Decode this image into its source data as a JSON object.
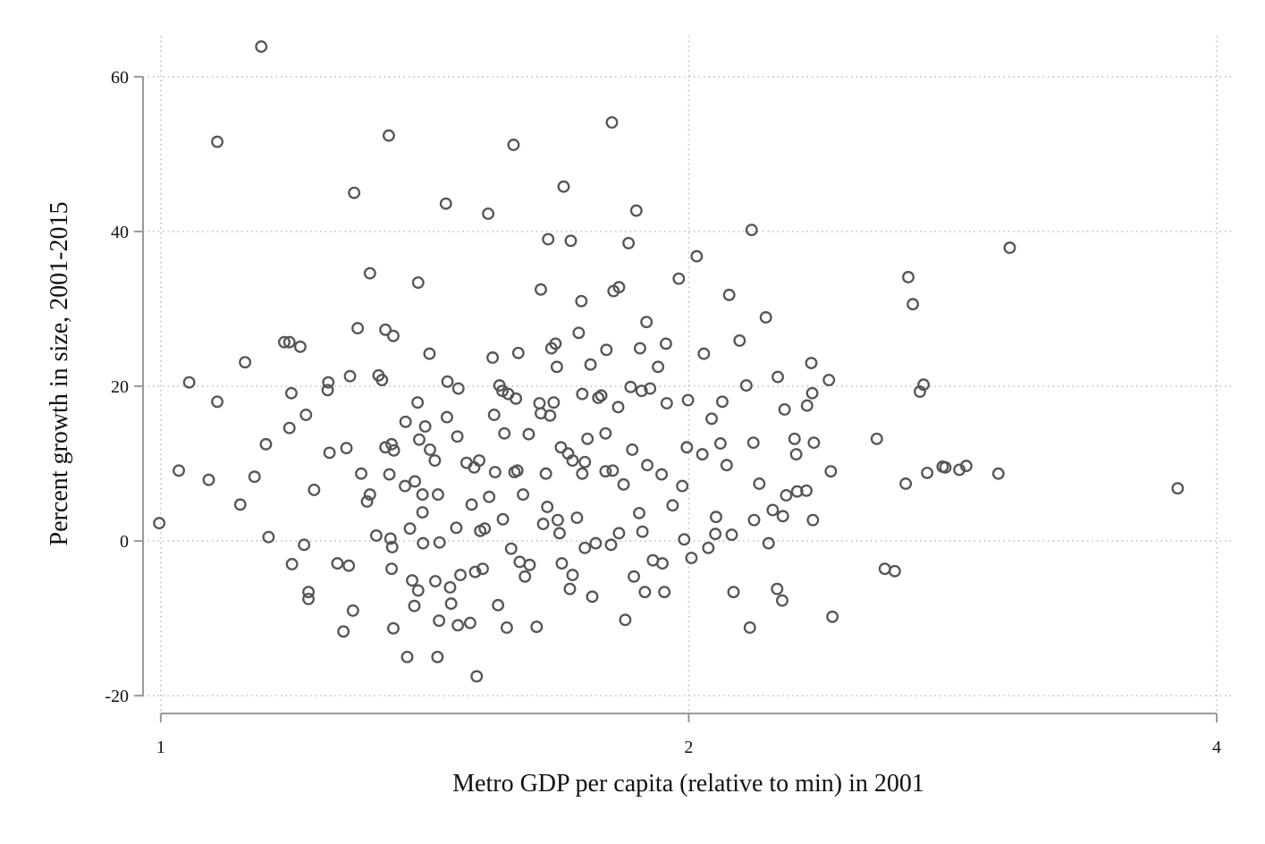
{
  "chart_data": {
    "type": "scatter",
    "xlabel": "Metro GDP per capita (relative to min) in 2001",
    "ylabel": "Percent growth in size, 2001-2015",
    "xscale": "log",
    "grid": true,
    "color": "#555555",
    "xlim": [
      0.977,
      4.09
    ],
    "ylim": [
      -22.3,
      65.3
    ],
    "xticks": [
      1,
      2,
      4
    ],
    "yticks": [
      -20,
      0,
      20,
      40,
      60
    ],
    "x": [
      1.141,
      1.077,
      0.998,
      1.024,
      1.038,
      1.065,
      1.077,
      1.11,
      1.117,
      1.131,
      1.148,
      1.152,
      1.176,
      1.184,
      1.201,
      1.184,
      1.187,
      1.188,
      1.207,
      1.21,
      1.214,
      1.214,
      1.223,
      1.246,
      1.245,
      1.248,
      1.261,
      1.271,
      1.276,
      1.28,
      1.282,
      1.287,
      1.289,
      1.295,
      1.301,
      1.311,
      1.316,
      1.316,
      1.327,
      1.331,
      1.337,
      1.343,
      1.349,
      1.357,
      1.343,
      1.354,
      1.358,
      1.35,
      1.352,
      1.354,
      1.355,
      1.357,
      1.378,
      1.379,
      1.382,
      1.387,
      1.391,
      1.395,
      1.396,
      1.401,
      1.402,
      1.404,
      1.402,
      1.41,
      1.41,
      1.411,
      1.415,
      1.423,
      1.424,
      1.433,
      1.434,
      1.438,
      1.439,
      1.441,
      1.442,
      1.454,
      1.456,
      1.457,
      1.462,
      1.464,
      1.476,
      1.478,
      1.477,
      1.474,
      1.482,
      1.494,
      1.501,
      1.504,
      1.509,
      1.511,
      1.514,
      1.519,
      1.521,
      1.526,
      1.53,
      1.537,
      1.539,
      1.546,
      1.549,
      1.551,
      1.557,
      1.56,
      1.567,
      1.57,
      1.575,
      1.578,
      1.584,
      1.589,
      1.591,
      1.594,
      1.599,
      1.602,
      1.609,
      1.613,
      1.621,
      1.623,
      1.638,
      1.647,
      1.644,
      1.647,
      1.658,
      1.663,
      1.667,
      1.67,
      1.675,
      1.679,
      1.682,
      1.684,
      1.688,
      1.693,
      1.697,
      1.707,
      1.713,
      1.717,
      1.717,
      1.727,
      1.731,
      1.737,
      1.739,
      1.745,
      1.751,
      1.758,
      1.762,
      1.77,
      1.776,
      1.783,
      1.793,
      1.795,
      1.808,
      1.81,
      1.812,
      1.825,
      1.823,
      1.825,
      1.84,
      1.848,
      1.853,
      1.857,
      1.861,
      1.867,
      1.876,
      1.88,
      1.888,
      1.892,
      1.894,
      1.901,
      1.908,
      1.921,
      1.93,
      1.932,
      1.937,
      1.941,
      1.943,
      1.974,
      1.983,
      1.988,
      1.995,
      1.998,
      2.007,
      2.021,
      2.04,
      2.052,
      2.061,
      2.071,
      2.085,
      2.09,
      2.102,
      2.109,
      2.116,
      2.121,
      2.138,
      2.157,
      2.167,
      2.172,
      2.177,
      2.179,
      2.194,
      2.213,
      2.221,
      2.233,
      2.246,
      2.248,
      2.261,
      2.263,
      2.268,
      2.273,
      2.298,
      2.303,
      2.306,
      2.334,
      2.336,
      2.349,
      2.352,
      2.354,
      2.357,
      2.404,
      2.41,
      2.415,
      2.56,
      2.587,
      2.621,
      2.659,
      2.668,
      2.684,
      2.709,
      2.722,
      2.735,
      2.791,
      2.801,
      2.853,
      2.879,
      3.003,
      3.048,
      3.8,
      1.566,
      1.597,
      1.661,
      1.711,
      1.745,
      1.806,
      1.836,
      1.874,
      1.882,
      1.958,
      2.036,
      2.073,
      1.793,
      1.739,
      1.691,
      1.652
    ],
    "values": [
      63.9,
      51.6,
      2.3,
      9.1,
      20.5,
      7.9,
      18.0,
      4.7,
      23.1,
      8.3,
      12.5,
      0.5,
      25.7,
      25.7,
      25.1,
      14.6,
      19.1,
      -3.0,
      -0.5,
      16.3,
      -6.6,
      -7.5,
      6.6,
      20.5,
      19.5,
      11.4,
      -2.9,
      -11.7,
      12.0,
      -3.2,
      21.3,
      -9.0,
      45.0,
      27.5,
      8.7,
      5.1,
      34.6,
      6.0,
      0.7,
      21.4,
      20.8,
      27.3,
      52.4,
      26.5,
      12.1,
      12.5,
      11.7,
      8.6,
      0.3,
      -3.6,
      -0.8,
      -11.3,
      7.1,
      15.4,
      -15.0,
      1.6,
      -5.1,
      -8.4,
      7.7,
      17.9,
      33.4,
      13.1,
      -6.4,
      6.0,
      3.7,
      -0.3,
      14.8,
      24.2,
      11.8,
      10.4,
      -5.2,
      -15.0,
      6.0,
      -10.3,
      -0.2,
      43.6,
      16.0,
      20.6,
      -6.0,
      -8.1,
      13.5,
      19.7,
      -10.9,
      1.7,
      -4.4,
      10.1,
      -10.6,
      4.7,
      9.5,
      -4.0,
      -17.5,
      10.4,
      1.3,
      -3.6,
      1.6,
      42.3,
      5.7,
      23.7,
      16.3,
      8.9,
      -8.3,
      20.1,
      2.8,
      13.9,
      -11.2,
      19.0,
      -1.0,
      51.2,
      8.9,
      18.4,
      24.3,
      -2.7,
      6.0,
      -4.6,
      13.8,
      -3.1,
      -11.1,
      32.5,
      17.8,
      16.5,
      8.7,
      39.0,
      16.2,
      24.9,
      17.9,
      25.5,
      22.5,
      2.7,
      1.0,
      -2.9,
      45.8,
      11.3,
      38.8,
      10.4,
      -4.4,
      3.0,
      26.9,
      31.0,
      19.0,
      10.2,
      13.2,
      22.8,
      -7.2,
      -0.3,
      18.5,
      18.8,
      13.9,
      24.7,
      54.1,
      9.1,
      32.3,
      32.8,
      17.3,
      1.0,
      -10.2,
      38.5,
      19.9,
      11.8,
      -4.6,
      42.7,
      24.9,
      19.4,
      -6.6,
      28.3,
      9.8,
      19.7,
      -2.5,
      22.5,
      8.6,
      -2.9,
      -6.6,
      25.5,
      17.8,
      33.9,
      7.1,
      0.2,
      12.1,
      18.2,
      -2.2,
      36.8,
      24.2,
      -0.9,
      15.8,
      0.9,
      12.6,
      18.0,
      9.8,
      31.8,
      0.8,
      -6.6,
      25.9,
      20.1,
      -11.2,
      40.2,
      12.7,
      2.7,
      7.4,
      28.9,
      -0.3,
      4.0,
      -6.2,
      21.2,
      -7.7,
      3.2,
      17.0,
      5.9,
      13.2,
      11.2,
      6.4,
      6.5,
      17.5,
      23.0,
      19.1,
      2.7,
      12.7,
      20.8,
      9.0,
      -9.8,
      13.2,
      -3.6,
      -3.9,
      7.4,
      34.1,
      30.6,
      19.3,
      20.2,
      8.8,
      9.6,
      9.5,
      9.2,
      9.7,
      8.7,
      37.9,
      6.8,
      19.4,
      9.1,
      4.4,
      -6.2,
      -0.9,
      -0.5,
      7.3,
      3.6,
      1.2,
      4.6,
      11.2,
      3.1,
      9.0,
      8.7,
      12.1,
      2.2
    ]
  }
}
